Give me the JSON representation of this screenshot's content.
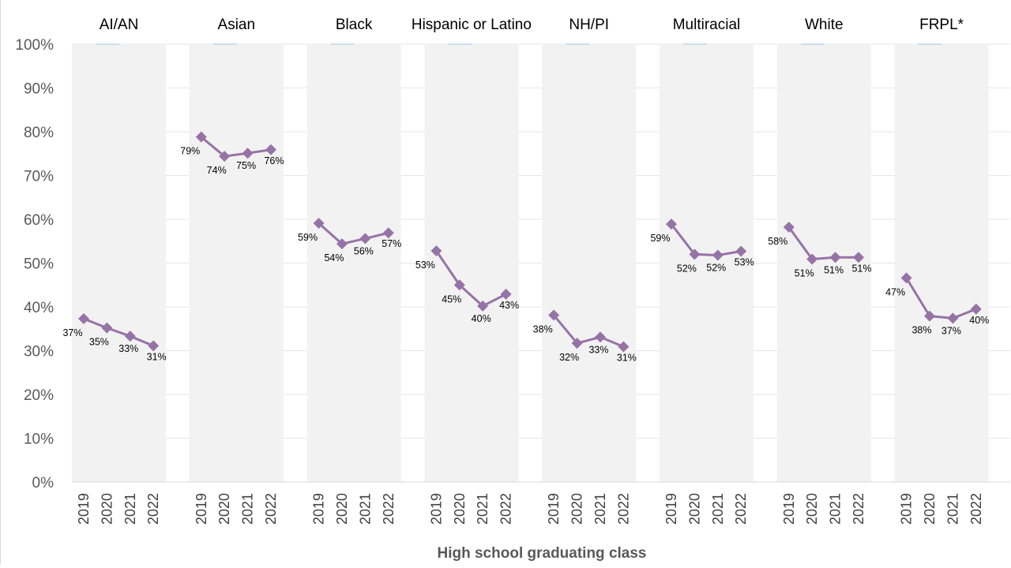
{
  "chart_data": {
    "type": "line",
    "xlabel": "High school graduating class",
    "ylabel": "",
    "ylim": [
      0,
      100
    ],
    "y_ticks": [
      "0%",
      "10%",
      "20%",
      "30%",
      "40%",
      "50%",
      "60%",
      "70%",
      "80%",
      "90%",
      "100%"
    ],
    "x_categories": [
      "2019",
      "2020",
      "2021",
      "2022"
    ],
    "grid": true,
    "legend": "none",
    "colors": {
      "line": "#9673a6",
      "marker": "#9673a6",
      "panel_band": "#f2f2f2",
      "gridline": "#e6e6e6"
    },
    "groups": [
      {
        "label": "AI/AN",
        "values": [
          37.3,
          35.2,
          33.3,
          31.1
        ],
        "value_labels": [
          "37%",
          "35%",
          "33%",
          "31%"
        ]
      },
      {
        "label": "Asian",
        "values": [
          78.8,
          74.4,
          75.1,
          75.9
        ],
        "value_labels": [
          "79%",
          "74%",
          "75%",
          "76%"
        ]
      },
      {
        "label": "Black",
        "values": [
          59.1,
          54.4,
          55.6,
          56.9
        ],
        "value_labels": [
          "59%",
          "54%",
          "56%",
          "57%"
        ]
      },
      {
        "label": "Hispanic or Latino",
        "values": [
          52.8,
          45.0,
          40.2,
          42.9
        ],
        "value_labels": [
          "53%",
          "45%",
          "40%",
          "43%"
        ]
      },
      {
        "label": "NH/PI",
        "values": [
          38.1,
          31.7,
          33.1,
          30.9
        ],
        "value_labels": [
          "38%",
          "32%",
          "33%",
          "31%"
        ]
      },
      {
        "label": "Multiracial",
        "values": [
          58.9,
          52.0,
          51.8,
          52.7
        ],
        "value_labels": [
          "59%",
          "52%",
          "52%",
          "53%"
        ]
      },
      {
        "label": "White",
        "values": [
          58.2,
          50.9,
          51.3,
          51.3
        ],
        "value_labels": [
          "58%",
          "51%",
          "51%",
          "51%"
        ]
      },
      {
        "label": "FRPL*",
        "values": [
          46.6,
          37.9,
          37.4,
          39.5
        ],
        "value_labels": [
          "47%",
          "38%",
          "37%",
          "40%"
        ]
      }
    ]
  }
}
